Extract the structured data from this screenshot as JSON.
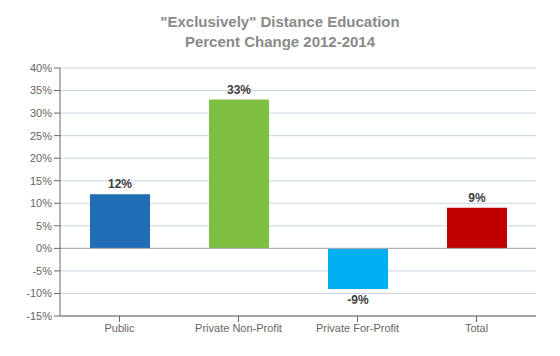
{
  "chart_data": {
    "type": "bar",
    "title": "\"Exclusively\" Distance Education\nPercent Change 2012-2014",
    "categories": [
      "Public",
      "Private Non-Profit",
      "Private For-Profit",
      "Total"
    ],
    "values": [
      12,
      33,
      -9,
      9
    ],
    "value_labels": [
      "12%",
      "33%",
      "-9%",
      "9%"
    ],
    "colors": [
      "#1f6db5",
      "#7dc042",
      "#00b0f0",
      "#c00000"
    ],
    "ylim": [
      -15,
      40
    ],
    "yticks": [
      {
        "value": -15,
        "label": "-15%"
      },
      {
        "value": -10,
        "label": "-10%"
      },
      {
        "value": -5,
        "label": "-5%"
      },
      {
        "value": 0,
        "label": "0%"
      },
      {
        "value": 5,
        "label": "5%"
      },
      {
        "value": 10,
        "label": "10%"
      },
      {
        "value": 15,
        "label": "15%"
      },
      {
        "value": 20,
        "label": "20%"
      },
      {
        "value": 25,
        "label": "25%"
      },
      {
        "value": 30,
        "label": "30%"
      },
      {
        "value": 35,
        "label": "35%"
      },
      {
        "value": 40,
        "label": "40%"
      }
    ],
    "grid": true,
    "data_labels": true
  }
}
